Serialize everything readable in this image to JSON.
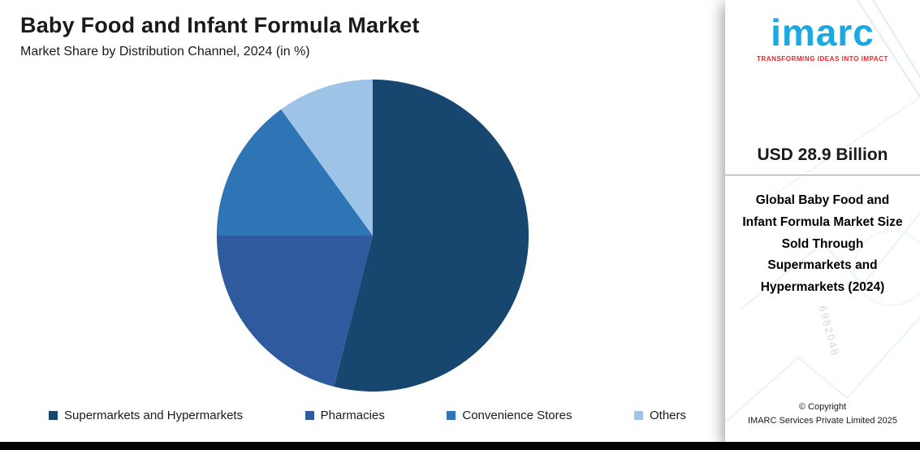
{
  "header": {
    "title": "Baby Food and Infant Formula Market",
    "subtitle": "Market Share by Distribution Channel, 2024 (in %)"
  },
  "chart_data": {
    "type": "pie",
    "title": "Baby Food and Infant Formula Market",
    "subtitle": "Market Share by Distribution Channel, 2024 (in %)",
    "unit": "%",
    "categories": [
      "Supermarkets and Hypermarkets",
      "Pharmacies",
      "Convenience Stores",
      "Others"
    ],
    "values": [
      54,
      21,
      15,
      10
    ],
    "colors": [
      "#17476e",
      "#2f5b9e",
      "#2e75b6",
      "#9dc3e6"
    ],
    "start_angle_deg": 0,
    "direction": "clockwise",
    "legend_position": "bottom",
    "data_labels": false
  },
  "panel": {
    "logo_text": "imarc",
    "logo_tagline": "TRANSFORMING IDEAS INTO IMPACT",
    "stat_value": "USD 28.9 Billion",
    "stat_description": "Global Baby Food and Infant Formula Market Size Sold Through Supermarkets and Hypermarkets (2024)",
    "watermark_text": "6982048",
    "copyright_line1": "© Copyright",
    "copyright_line2": "IMARC Services Private Limited 2025",
    "brand_blue": "#1ba9e1",
    "brand_red": "#e8232a"
  }
}
